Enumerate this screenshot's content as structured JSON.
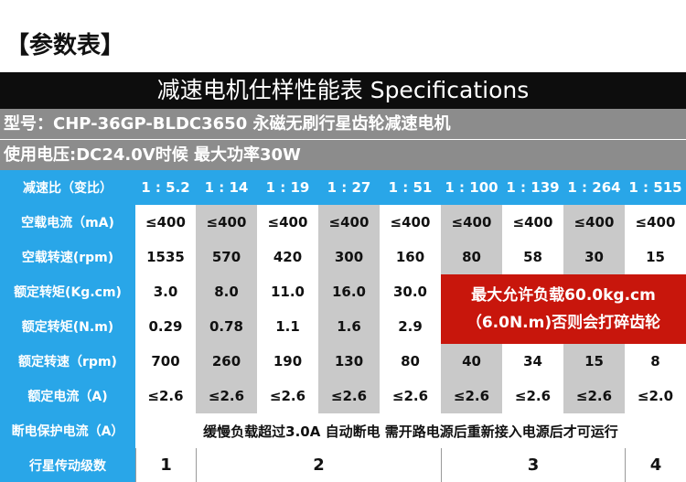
{
  "heading": "【参数表】",
  "banner": "减速电机仕样性能表 Specifications",
  "model_line": "型号：CHP-36GP-BLDC3650 永磁无刷行星齿轮减速电机",
  "voltage_line": "使用电压:DC24.0V时候 最大功率30W",
  "table": {
    "header_label": "减速比（变比）",
    "ratios": [
      "1 : 5.2",
      "1 : 14",
      "1 : 19",
      "1 : 27",
      "1 : 51",
      "1 : 100",
      "1 : 139",
      "1 : 264",
      "1 : 515"
    ],
    "rows": [
      {
        "label": "空载电流（mA)",
        "values": [
          "≤400",
          "≤400",
          "≤400",
          "≤400",
          "≤400",
          "≤400",
          "≤400",
          "≤400",
          "≤400"
        ]
      },
      {
        "label": "空载转速(rpm)",
        "values": [
          "1535",
          "570",
          "420",
          "300",
          "160",
          "80",
          "58",
          "30",
          "15"
        ]
      },
      {
        "label": "额定转矩(Kg.cm)",
        "values": [
          "3.0",
          "8.0",
          "11.0",
          "16.0",
          "30.0"
        ]
      },
      {
        "label": "额定转矩(N.m)",
        "values": [
          "0.29",
          "0.78",
          "1.1",
          "1.6",
          "2.9"
        ]
      },
      {
        "label": "额定转速（rpm)",
        "values": [
          "700",
          "260",
          "190",
          "130",
          "80",
          "40",
          "34",
          "15",
          "8"
        ]
      },
      {
        "label": "额定电流（A)",
        "values": [
          "≤2.6",
          "≤2.6",
          "≤2.6",
          "≤2.6",
          "≤2.6",
          "≤2.6",
          "≤2.6",
          "≤2.6",
          "≤2.0"
        ]
      }
    ],
    "max_load_note_line1": "最大允许负载60.0kg.cm",
    "max_load_note_line2": "（6.0N.m)否则会打碎齿轮",
    "protection_label": "断电保护电流（A）",
    "protection_text": "缓慢负载超过3.0A 自动断电   需开路电源后重新接入电源后才可运行",
    "stages_label": "行星传动级数",
    "stages": [
      "1",
      "2",
      "3",
      "4"
    ]
  },
  "colors": {
    "header_blue": "#29a6e8",
    "alt_gray": "#c9c9c9",
    "note_red": "#c8160c",
    "banner_black": "#0d0d0d",
    "info_gray": "#8c8c8c"
  }
}
